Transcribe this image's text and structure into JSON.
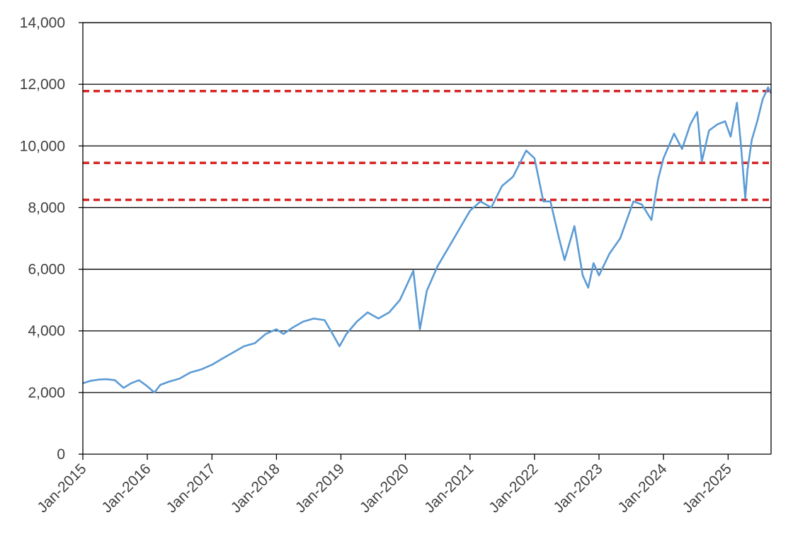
{
  "chart_data": {
    "type": "line",
    "title": "",
    "xlabel": "",
    "ylabel": "",
    "x_range": [
      "2015-01-01",
      "2025-09-01"
    ],
    "ylim": [
      0,
      14000
    ],
    "grid": "horizontal",
    "y_ticks": [
      {
        "value": 0,
        "label": "0"
      },
      {
        "value": 2000,
        "label": "2,000"
      },
      {
        "value": 4000,
        "label": "4,000"
      },
      {
        "value": 6000,
        "label": "6,000"
      },
      {
        "value": 8000,
        "label": "8,000"
      },
      {
        "value": 10000,
        "label": "10,000"
      },
      {
        "value": 12000,
        "label": "12,000"
      },
      {
        "value": 14000,
        "label": "14,000"
      }
    ],
    "x_ticks": [
      {
        "value": "2015-01-01",
        "label": "Jan-2015"
      },
      {
        "value": "2016-01-01",
        "label": "Jan-2016"
      },
      {
        "value": "2017-01-01",
        "label": "Jan-2017"
      },
      {
        "value": "2018-01-01",
        "label": "Jan-2018"
      },
      {
        "value": "2019-01-01",
        "label": "Jan-2019"
      },
      {
        "value": "2020-01-01",
        "label": "Jan-2020"
      },
      {
        "value": "2021-01-01",
        "label": "Jan-2021"
      },
      {
        "value": "2022-01-01",
        "label": "Jan-2022"
      },
      {
        "value": "2023-01-01",
        "label": "Jan-2023"
      },
      {
        "value": "2024-01-01",
        "label": "Jan-2024"
      },
      {
        "value": "2025-01-01",
        "label": "Jan-2025"
      }
    ],
    "series": [
      {
        "color": "#5b9bd5",
        "points": [
          [
            "2015-01-01",
            2300
          ],
          [
            "2015-02-15",
            2380
          ],
          [
            "2015-04-01",
            2420
          ],
          [
            "2015-05-15",
            2430
          ],
          [
            "2015-07-01",
            2400
          ],
          [
            "2015-08-20",
            2150
          ],
          [
            "2015-10-01",
            2300
          ],
          [
            "2015-11-15",
            2400
          ],
          [
            "2016-01-01",
            2200
          ],
          [
            "2016-02-10",
            2000
          ],
          [
            "2016-03-15",
            2250
          ],
          [
            "2016-05-01",
            2350
          ],
          [
            "2016-07-01",
            2450
          ],
          [
            "2016-09-01",
            2650
          ],
          [
            "2016-11-01",
            2750
          ],
          [
            "2017-01-01",
            2900
          ],
          [
            "2017-03-01",
            3100
          ],
          [
            "2017-05-01",
            3300
          ],
          [
            "2017-07-01",
            3500
          ],
          [
            "2017-09-01",
            3600
          ],
          [
            "2017-11-01",
            3900
          ],
          [
            "2018-01-01",
            4050
          ],
          [
            "2018-02-10",
            3900
          ],
          [
            "2018-04-01",
            4100
          ],
          [
            "2018-06-01",
            4300
          ],
          [
            "2018-08-01",
            4400
          ],
          [
            "2018-10-01",
            4350
          ],
          [
            "2018-11-15",
            3900
          ],
          [
            "2018-12-24",
            3500
          ],
          [
            "2019-02-01",
            3900
          ],
          [
            "2019-04-01",
            4300
          ],
          [
            "2019-06-01",
            4600
          ],
          [
            "2019-08-01",
            4400
          ],
          [
            "2019-10-01",
            4600
          ],
          [
            "2019-12-01",
            5000
          ],
          [
            "2020-02-15",
            5950
          ],
          [
            "2020-03-23",
            4050
          ],
          [
            "2020-05-01",
            5300
          ],
          [
            "2020-07-01",
            6100
          ],
          [
            "2020-09-01",
            6700
          ],
          [
            "2020-11-01",
            7300
          ],
          [
            "2021-01-01",
            7900
          ],
          [
            "2021-03-01",
            8200
          ],
          [
            "2021-05-01",
            8000
          ],
          [
            "2021-07-01",
            8700
          ],
          [
            "2021-09-01",
            9000
          ],
          [
            "2021-11-15",
            9850
          ],
          [
            "2022-01-01",
            9600
          ],
          [
            "2022-02-20",
            8200
          ],
          [
            "2022-04-01",
            8200
          ],
          [
            "2022-05-20",
            7000
          ],
          [
            "2022-06-20",
            6300
          ],
          [
            "2022-08-15",
            7400
          ],
          [
            "2022-10-01",
            5800
          ],
          [
            "2022-11-01",
            5400
          ],
          [
            "2022-12-01",
            6200
          ],
          [
            "2023-01-01",
            5800
          ],
          [
            "2023-03-01",
            6500
          ],
          [
            "2023-05-01",
            7000
          ],
          [
            "2023-07-15",
            8200
          ],
          [
            "2023-09-01",
            8100
          ],
          [
            "2023-10-25",
            7600
          ],
          [
            "2023-12-01",
            8900
          ],
          [
            "2024-01-01",
            9600
          ],
          [
            "2024-03-01",
            10400
          ],
          [
            "2024-04-15",
            9900
          ],
          [
            "2024-06-01",
            10700
          ],
          [
            "2024-07-10",
            11100
          ],
          [
            "2024-08-05",
            9500
          ],
          [
            "2024-09-15",
            10500
          ],
          [
            "2024-11-01",
            10700
          ],
          [
            "2024-12-15",
            10800
          ],
          [
            "2025-01-15",
            10300
          ],
          [
            "2025-02-20",
            11400
          ],
          [
            "2025-03-15",
            10000
          ],
          [
            "2025-04-08",
            8300
          ],
          [
            "2025-04-20",
            9200
          ],
          [
            "2025-05-15",
            10200
          ],
          [
            "2025-06-15",
            10800
          ],
          [
            "2025-07-15",
            11500
          ],
          [
            "2025-08-15",
            11900
          ],
          [
            "2025-09-01",
            11700
          ]
        ]
      }
    ],
    "reference_lines": [
      {
        "value": 11780,
        "color": "#d62728",
        "style": "dashed"
      },
      {
        "value": 9450,
        "color": "#d62728",
        "style": "dashed"
      },
      {
        "value": 8250,
        "color": "#d62728",
        "style": "dashed"
      }
    ]
  }
}
